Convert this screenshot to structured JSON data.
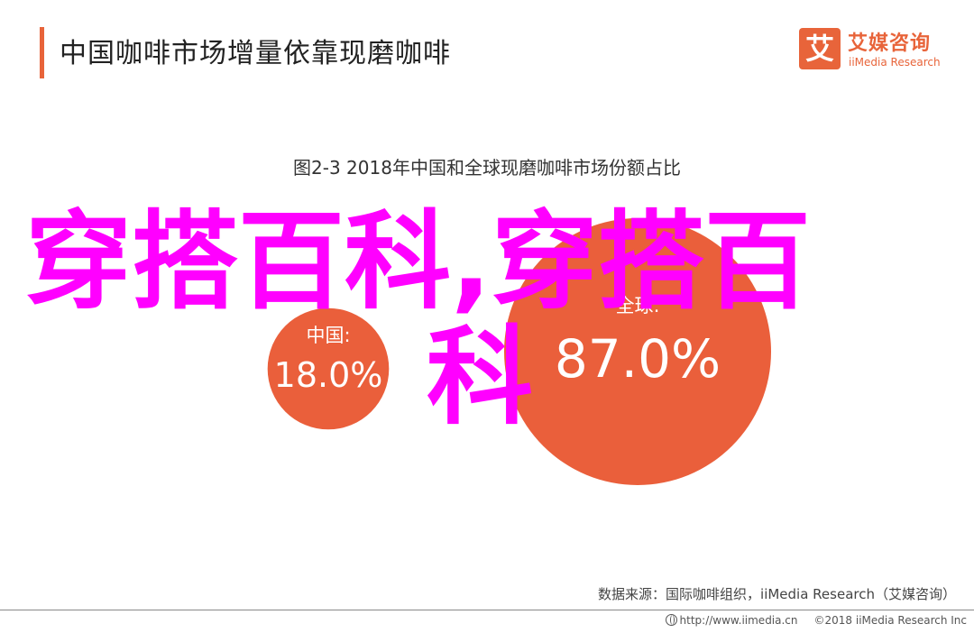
{
  "header": {
    "title": "中国咖啡市场增量依靠现磨咖啡"
  },
  "logo": {
    "mark": "艾",
    "cn": "艾媒咨询",
    "en": "iiMedia Research"
  },
  "chart_data": {
    "type": "bubble",
    "title": "图2-3 2018年中国和全球现磨咖啡市场份额占比",
    "series": [
      {
        "name": "中国:",
        "value": 18.0,
        "label": "18.0%"
      },
      {
        "name": "全球:",
        "value": 87.0,
        "label": "87.0%"
      }
    ],
    "colors": [
      "#ea5f3b",
      "#ea5f3b"
    ]
  },
  "watermark": {
    "line1": "穿搭百科,穿搭百",
    "line2": "科"
  },
  "source": {
    "text": "数据来源：国际咖啡组织，iiMedia Research（艾媒咨询）"
  },
  "footer": {
    "url": "http://www.iimedia.cn",
    "copyright": "©2018  iiMedia Research  Inc"
  }
}
